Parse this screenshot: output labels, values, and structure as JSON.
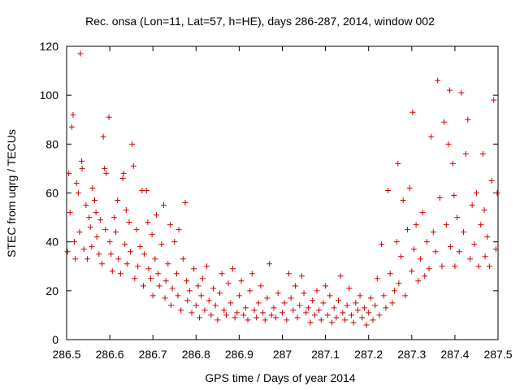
{
  "chart_data": {
    "type": "scatter",
    "title": "Rec. onsa (Lon=11, Lat=57, h=HE), days 286-287, 2014, window 002",
    "xlabel": "GPS time / Days of year 2014",
    "ylabel": "STEC from uqrg / TECUs",
    "xlim": [
      286.5,
      287.5
    ],
    "ylim": [
      0,
      120
    ],
    "xticks": [
      "286.5",
      "286.6",
      "286.7",
      "286.8",
      "286.9",
      "287",
      "287.1",
      "287.2",
      "287.3",
      "287.4",
      "287.5"
    ],
    "yticks": [
      "0",
      "20",
      "40",
      "60",
      "80",
      "100",
      "120"
    ],
    "grid": false,
    "marker": "+",
    "color": "#cc0000",
    "points": [
      [
        286.502,
        36
      ],
      [
        286.505,
        68
      ],
      [
        286.508,
        52
      ],
      [
        286.512,
        87
      ],
      [
        286.515,
        92
      ],
      [
        286.518,
        40
      ],
      [
        286.52,
        33
      ],
      [
        286.523,
        64
      ],
      [
        286.527,
        60
      ],
      [
        286.53,
        44
      ],
      [
        286.532,
        117
      ],
      [
        286.535,
        73
      ],
      [
        286.536,
        70
      ],
      [
        286.54,
        37
      ],
      [
        286.545,
        55
      ],
      [
        286.548,
        33
      ],
      [
        286.552,
        50
      ],
      [
        286.555,
        46
      ],
      [
        286.558,
        38
      ],
      [
        286.56,
        62
      ],
      [
        286.565,
        57
      ],
      [
        286.568,
        52
      ],
      [
        286.57,
        42
      ],
      [
        286.575,
        35
      ],
      [
        286.578,
        49
      ],
      [
        286.582,
        31
      ],
      [
        286.585,
        83
      ],
      [
        286.588,
        70
      ],
      [
        286.59,
        45
      ],
      [
        286.592,
        68
      ],
      [
        286.598,
        91
      ],
      [
        286.6,
        40
      ],
      [
        286.603,
        35
      ],
      [
        286.606,
        28
      ],
      [
        286.61,
        50
      ],
      [
        286.614,
        44
      ],
      [
        286.618,
        57
      ],
      [
        286.62,
        33
      ],
      [
        286.625,
        27
      ],
      [
        286.63,
        66
      ],
      [
        286.632,
        68
      ],
      [
        286.635,
        39
      ],
      [
        286.638,
        53
      ],
      [
        286.64,
        31
      ],
      [
        286.645,
        48
      ],
      [
        286.648,
        36
      ],
      [
        286.652,
        80
      ],
      [
        286.655,
        71
      ],
      [
        286.658,
        25
      ],
      [
        286.662,
        45
      ],
      [
        286.665,
        30
      ],
      [
        286.67,
        38
      ],
      [
        286.675,
        61
      ],
      [
        286.678,
        22
      ],
      [
        286.68,
        35
      ],
      [
        286.685,
        61
      ],
      [
        286.688,
        48
      ],
      [
        286.69,
        29
      ],
      [
        286.695,
        25
      ],
      [
        286.698,
        43
      ],
      [
        286.7,
        18
      ],
      [
        286.705,
        33
      ],
      [
        286.708,
        51
      ],
      [
        286.712,
        27
      ],
      [
        286.715,
        22
      ],
      [
        286.72,
        39
      ],
      [
        286.725,
        55
      ],
      [
        286.728,
        17
      ],
      [
        286.73,
        24
      ],
      [
        286.735,
        31
      ],
      [
        286.74,
        47
      ],
      [
        286.742,
        14
      ],
      [
        286.745,
        21
      ],
      [
        286.75,
        40
      ],
      [
        286.755,
        27
      ],
      [
        286.758,
        18
      ],
      [
        286.76,
        45
      ],
      [
        286.765,
        12
      ],
      [
        286.77,
        33
      ],
      [
        286.775,
        56
      ],
      [
        286.778,
        24
      ],
      [
        286.78,
        16
      ],
      [
        286.785,
        20
      ],
      [
        286.79,
        11
      ],
      [
        286.795,
        29
      ],
      [
        286.8,
        14
      ],
      [
        286.805,
        22
      ],
      [
        286.808,
        9
      ],
      [
        286.812,
        18
      ],
      [
        286.815,
        25
      ],
      [
        286.82,
        12
      ],
      [
        286.825,
        30
      ],
      [
        286.83,
        16
      ],
      [
        286.835,
        10
      ],
      [
        286.84,
        21
      ],
      [
        286.845,
        14
      ],
      [
        286.85,
        8
      ],
      [
        286.855,
        19
      ],
      [
        286.86,
        27
      ],
      [
        286.865,
        12
      ],
      [
        286.87,
        10
      ],
      [
        286.875,
        23
      ],
      [
        286.88,
        15
      ],
      [
        286.885,
        29
      ],
      [
        286.89,
        9
      ],
      [
        286.895,
        11
      ],
      [
        286.9,
        18
      ],
      [
        286.905,
        24
      ],
      [
        286.91,
        10
      ],
      [
        286.915,
        13
      ],
      [
        286.92,
        8
      ],
      [
        286.925,
        20
      ],
      [
        286.93,
        27
      ],
      [
        286.935,
        12
      ],
      [
        286.94,
        9
      ],
      [
        286.945,
        15
      ],
      [
        286.95,
        22
      ],
      [
        286.955,
        11
      ],
      [
        286.96,
        8
      ],
      [
        286.965,
        17
      ],
      [
        286.97,
        31
      ],
      [
        286.975,
        10
      ],
      [
        286.98,
        13
      ],
      [
        286.985,
        9
      ],
      [
        286.99,
        19
      ],
      [
        287.0,
        11
      ],
      [
        287.005,
        15
      ],
      [
        287.01,
        8
      ],
      [
        287.015,
        27
      ],
      [
        287.02,
        17
      ],
      [
        287.025,
        12
      ],
      [
        287.03,
        22
      ],
      [
        287.035,
        9
      ],
      [
        287.04,
        14
      ],
      [
        287.045,
        26
      ],
      [
        287.05,
        19
      ],
      [
        287.055,
        11
      ],
      [
        287.06,
        13
      ],
      [
        287.065,
        7
      ],
      [
        287.07,
        16
      ],
      [
        287.075,
        10
      ],
      [
        287.08,
        20
      ],
      [
        287.085,
        12
      ],
      [
        287.09,
        8
      ],
      [
        287.095,
        15
      ],
      [
        287.1,
        22
      ],
      [
        287.105,
        10
      ],
      [
        287.11,
        18
      ],
      [
        287.115,
        7
      ],
      [
        287.12,
        13
      ],
      [
        287.125,
        9
      ],
      [
        287.13,
        16
      ],
      [
        287.135,
        26
      ],
      [
        287.14,
        11
      ],
      [
        287.145,
        8
      ],
      [
        287.15,
        14
      ],
      [
        287.155,
        21
      ],
      [
        287.16,
        10
      ],
      [
        287.165,
        7
      ],
      [
        287.17,
        15
      ],
      [
        287.175,
        12
      ],
      [
        287.18,
        18
      ],
      [
        287.185,
        9
      ],
      [
        287.19,
        13
      ],
      [
        287.195,
        6
      ],
      [
        287.2,
        11
      ],
      [
        287.205,
        17
      ],
      [
        287.21,
        8
      ],
      [
        287.215,
        14
      ],
      [
        287.22,
        25
      ],
      [
        287.225,
        10
      ],
      [
        287.23,
        39
      ],
      [
        287.235,
        18
      ],
      [
        287.24,
        13
      ],
      [
        287.245,
        61
      ],
      [
        287.25,
        27
      ],
      [
        287.255,
        15
      ],
      [
        287.26,
        20
      ],
      [
        287.265,
        40
      ],
      [
        287.268,
        72
      ],
      [
        287.27,
        23
      ],
      [
        287.275,
        34
      ],
      [
        287.28,
        57
      ],
      [
        287.285,
        18
      ],
      [
        287.29,
        45
      ],
      [
        287.295,
        62
      ],
      [
        287.3,
        28
      ],
      [
        287.302,
        93
      ],
      [
        287.305,
        37
      ],
      [
        287.31,
        47
      ],
      [
        287.315,
        24
      ],
      [
        287.32,
        33
      ],
      [
        287.325,
        52
      ],
      [
        287.33,
        26
      ],
      [
        287.335,
        40
      ],
      [
        287.34,
        29
      ],
      [
        287.345,
        83
      ],
      [
        287.35,
        44
      ],
      [
        287.355,
        36
      ],
      [
        287.36,
        106
      ],
      [
        287.365,
        58
      ],
      [
        287.37,
        30
      ],
      [
        287.375,
        89
      ],
      [
        287.38,
        47
      ],
      [
        287.385,
        80
      ],
      [
        287.388,
        102
      ],
      [
        287.39,
        38
      ],
      [
        287.395,
        72
      ],
      [
        287.398,
        59
      ],
      [
        287.4,
        30
      ],
      [
        287.405,
        50
      ],
      [
        287.41,
        36
      ],
      [
        287.415,
        101
      ],
      [
        287.42,
        44
      ],
      [
        287.425,
        76
      ],
      [
        287.43,
        90
      ],
      [
        287.435,
        33
      ],
      [
        287.44,
        55
      ],
      [
        287.445,
        39
      ],
      [
        287.45,
        60
      ],
      [
        287.455,
        30
      ],
      [
        287.46,
        47
      ],
      [
        287.465,
        76
      ],
      [
        287.468,
        53
      ],
      [
        287.47,
        34
      ],
      [
        287.475,
        42
      ],
      [
        287.48,
        30
      ],
      [
        287.485,
        65
      ],
      [
        287.49,
        98
      ],
      [
        287.495,
        37
      ],
      [
        287.498,
        60
      ]
    ]
  }
}
